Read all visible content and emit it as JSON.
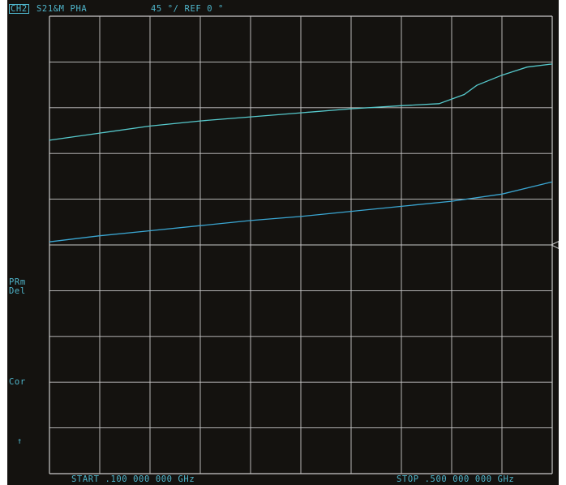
{
  "header": {
    "channel": "CH2",
    "measurement": "S21&M PHA",
    "scale": "45 °/ REF 0 °"
  },
  "side_annotations": {
    "prm": "PRm",
    "del": "Del",
    "cor": "Cor",
    "arrow": "↑"
  },
  "footer": {
    "start": "START .100 000 000 GHz",
    "stop": "STOP .500 000 000 GHz"
  },
  "colors": {
    "background": "#14120f",
    "grid": "#c9c9c9",
    "trace_upper": "#56c9cc",
    "trace_lower": "#3aa6d2",
    "annotation": "#4fb6cc",
    "marker": "#d8d8d8"
  },
  "chart_data": {
    "type": "line",
    "title": "",
    "xlabel": "",
    "ylabel": "",
    "xlim": [
      0.1,
      0.5
    ],
    "ylim": [
      -225,
      225
    ],
    "grid": true,
    "x_divisions": 10,
    "y_divisions": 10,
    "reference_value": 0,
    "series": [
      {
        "x": [
          0.1,
          0.14,
          0.18,
          0.22,
          0.26,
          0.3,
          0.34,
          0.38,
          0.41,
          0.43,
          0.44,
          0.46,
          0.48,
          0.5
        ],
        "y": [
          103,
          110,
          117,
          122,
          126,
          130,
          134,
          137,
          139,
          148,
          157,
          167,
          175,
          178
        ]
      },
      {
        "x": [
          0.1,
          0.14,
          0.18,
          0.22,
          0.26,
          0.3,
          0.34,
          0.38,
          0.42,
          0.46,
          0.5
        ],
        "y": [
          3,
          9,
          14,
          19,
          24,
          28,
          33,
          38,
          43,
          50,
          62
        ]
      }
    ]
  }
}
